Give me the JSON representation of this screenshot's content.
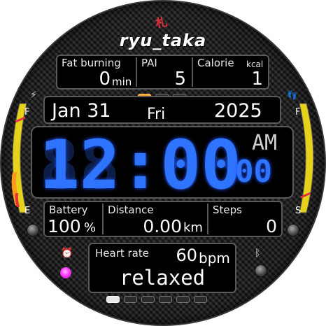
{
  "brand": {
    "mark": "札",
    "name": "ryu_taka"
  },
  "stats_top": {
    "fat_burning": {
      "label": "Fat burning",
      "value": "0",
      "unit": "min"
    },
    "pai": {
      "label": "PAI",
      "value": "5"
    },
    "calorie": {
      "label": "Calorie",
      "unit": "kcal",
      "value": "1"
    }
  },
  "date": {
    "month_day": "Jan 31",
    "weekday": "Fri",
    "year": "2025"
  },
  "time": {
    "hours_minutes": "12:00",
    "seconds": "00",
    "ampm": "AM"
  },
  "gauges": {
    "left": {
      "top_label": "F",
      "bottom_label": "E"
    },
    "right": {
      "top_label": "F",
      "bottom_label": "S"
    }
  },
  "stats_bottom": {
    "battery": {
      "label": "Battery",
      "value": "100",
      "unit": "%"
    },
    "distance": {
      "label": "Distance",
      "value": "0.00",
      "unit": "km"
    },
    "steps": {
      "label": "Steps",
      "value": "0"
    }
  },
  "heart": {
    "label": "Heart rate",
    "value": "60",
    "unit": "bpm",
    "status": "relaxed"
  },
  "icons": {
    "flash": "lightning-icon",
    "footprints": "footprints-icon",
    "alarm": "alarm-clock-icon",
    "bluetooth": "bluetooth-icon"
  },
  "colors": {
    "time_blue": "#2f74ff",
    "gauge_yellow": "#e6d21a",
    "alarm_magenta": "#ff39ff",
    "accent_orange": "#ff9a1a"
  },
  "page_indicator": {
    "count": 6,
    "active_index": 0
  }
}
